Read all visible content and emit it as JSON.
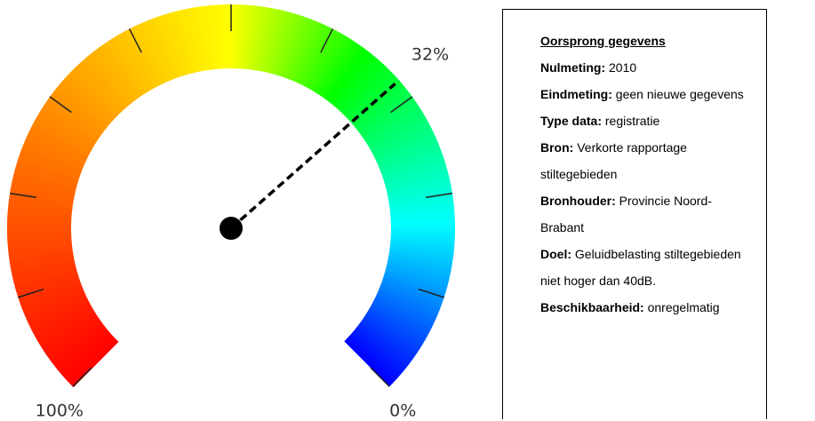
{
  "chart_data": {
    "type": "gauge",
    "values": [
      32
    ],
    "value_labels": [
      "32%"
    ],
    "lim": [
      0,
      100
    ],
    "ticks": [
      {
        "value": 0,
        "label": "0%"
      },
      10,
      20,
      30,
      40,
      50,
      60,
      70,
      80,
      90,
      {
        "value": 100,
        "label": "100%"
      }
    ]
  },
  "info": {
    "title": "Oorsprong gegevens",
    "rows": [
      {
        "label": "Nulmeting:",
        "value": "2010"
      },
      {
        "label": "Eindmeting:",
        "value": "geen nieuwe gegevens"
      },
      {
        "label": "Type data:",
        "value": "registratie"
      },
      {
        "label": "Bron:",
        "value": "Verkorte rapportage stiltegebieden"
      },
      {
        "label": "Bronhouder:",
        "value": "Provincie Noord-Brabant"
      },
      {
        "label": "Doel:",
        "value": "Geluidbelasting stiltegebieden niet hoger dan 40dB."
      },
      {
        "label": "Beschikbaarheid:",
        "value": "onregelmatig"
      }
    ]
  }
}
